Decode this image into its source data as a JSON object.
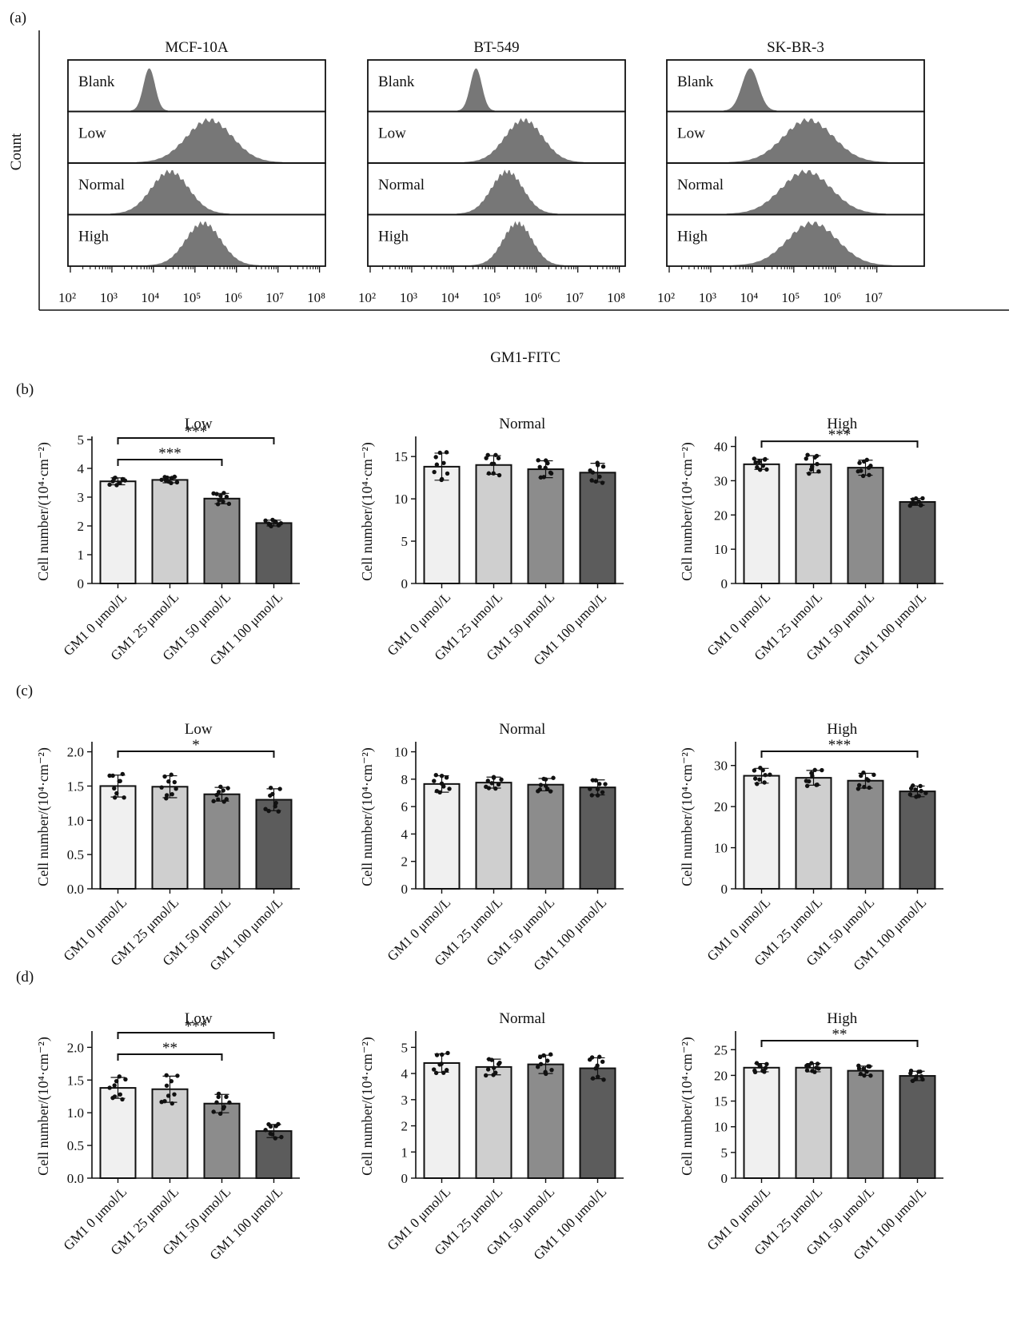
{
  "panel_labels": [
    "(a)",
    "(b)",
    "(c)",
    "(d)"
  ],
  "flow": {
    "y_label": "Count",
    "x_label": "GM1-FITC",
    "row_labels": [
      "Blank",
      "Low",
      "Normal",
      "High"
    ],
    "tick_labels": [
      "10²",
      "10³",
      "10⁴",
      "10⁵",
      "10⁶",
      "10⁷",
      "10⁸"
    ],
    "colors": {
      "fill": "#777777"
    },
    "plots": [
      {
        "title": "MCF-10A",
        "decades": 7,
        "peaks": [
          {
            "center": 3.9,
            "width": 0.14,
            "label": "Blank"
          },
          {
            "center": 5.35,
            "width": 0.55,
            "label": "Low"
          },
          {
            "center": 4.4,
            "width": 0.45,
            "label": "Normal"
          },
          {
            "center": 5.2,
            "width": 0.42,
            "label": "High"
          }
        ]
      },
      {
        "title": "BT-549",
        "decades": 6,
        "peaks": [
          {
            "center": 4.55,
            "width": 0.14,
            "label": "Blank"
          },
          {
            "center": 5.7,
            "width": 0.45,
            "label": "Low"
          },
          {
            "center": 5.3,
            "width": 0.38,
            "label": "Normal"
          },
          {
            "center": 5.55,
            "width": 0.35,
            "label": "High"
          }
        ]
      },
      {
        "title": "SK-BR-3",
        "decades": 5,
        "peaks": [
          {
            "center": 3.95,
            "width": 0.2,
            "label": "Blank"
          },
          {
            "center": 5.35,
            "width": 0.6,
            "label": "Low"
          },
          {
            "center": 5.3,
            "width": 0.6,
            "label": "Normal"
          },
          {
            "center": 5.45,
            "width": 0.6,
            "label": "High"
          }
        ]
      }
    ]
  },
  "bar_common": {
    "ylabel": "Cell number/(10⁴·cm⁻²)",
    "categories": [
      "GM1 0 μmol/L",
      "GM1 25 μmol/L",
      "GM1 50 μmol/L",
      "GM1 100 μmol/L"
    ],
    "bar_colors": [
      "#f0f0f0",
      "#cfcfcf",
      "#8c8c8c",
      "#5c5c5c"
    ]
  },
  "chart_data": [
    {
      "type": "bar",
      "panel": "(b)",
      "title": "Low",
      "values": [
        3.55,
        3.6,
        2.95,
        2.1
      ],
      "errors": [
        0.12,
        0.1,
        0.18,
        0.1
      ],
      "ylim": [
        0,
        5
      ],
      "yticks": [
        "0",
        "1",
        "2",
        "3",
        "4",
        "5"
      ],
      "sig": [
        {
          "from": 0,
          "to": 3,
          "label": "***"
        },
        {
          "from": 0,
          "to": 2,
          "label": "***"
        }
      ]
    },
    {
      "type": "bar",
      "panel": "(b)",
      "title": "Normal",
      "values": [
        13.8,
        14.0,
        13.5,
        13.1
      ],
      "errors": [
        1.6,
        1.1,
        1.0,
        1.1
      ],
      "ylim": [
        0,
        17
      ],
      "yticks": [
        "0",
        "5",
        "10",
        "15"
      ],
      "sig": []
    },
    {
      "type": "bar",
      "panel": "(b)",
      "title": "High",
      "values": [
        34.8,
        34.8,
        33.8,
        23.8
      ],
      "errors": [
        1.5,
        2.5,
        2.2,
        1.0
      ],
      "ylim": [
        0,
        42
      ],
      "yticks": [
        "0",
        "10",
        "20",
        "30",
        "40"
      ],
      "sig": [
        {
          "from": 0,
          "to": 3,
          "label": "***"
        }
      ]
    },
    {
      "type": "bar",
      "panel": "(c)",
      "title": "Low",
      "values": [
        1.5,
        1.49,
        1.38,
        1.3
      ],
      "errors": [
        0.16,
        0.16,
        0.1,
        0.16
      ],
      "ylim": [
        0,
        2.1
      ],
      "yticks": [
        "0.0",
        "0.5",
        "1.0",
        "1.5",
        "2.0"
      ],
      "sig": [
        {
          "from": 0,
          "to": 3,
          "label": "*"
        }
      ]
    },
    {
      "type": "bar",
      "panel": "(c)",
      "title": "Normal",
      "values": [
        7.65,
        7.75,
        7.6,
        7.4
      ],
      "errors": [
        0.6,
        0.4,
        0.45,
        0.55
      ],
      "ylim": [
        0,
        10.5
      ],
      "yticks": [
        "0",
        "2",
        "4",
        "6",
        "8",
        "10"
      ],
      "sig": []
    },
    {
      "type": "bar",
      "panel": "(c)",
      "title": "High",
      "values": [
        27.5,
        27.0,
        26.3,
        23.7
      ],
      "errors": [
        1.8,
        1.8,
        1.8,
        1.3
      ],
      "ylim": [
        0,
        35
      ],
      "yticks": [
        "0",
        "10",
        "20",
        "30"
      ],
      "sig": [
        {
          "from": 0,
          "to": 3,
          "label": "***"
        }
      ]
    },
    {
      "type": "bar",
      "panel": "(d)",
      "title": "Low",
      "values": [
        1.38,
        1.36,
        1.14,
        0.72
      ],
      "errors": [
        0.16,
        0.2,
        0.14,
        0.1
      ],
      "ylim": [
        0,
        2.2
      ],
      "yticks": [
        "0.0",
        "0.5",
        "1.0",
        "1.5",
        "2.0"
      ],
      "sig": [
        {
          "from": 0,
          "to": 3,
          "label": "***"
        },
        {
          "from": 0,
          "to": 2,
          "label": "**"
        }
      ]
    },
    {
      "type": "bar",
      "panel": "(d)",
      "title": "Normal",
      "values": [
        4.4,
        4.25,
        4.35,
        4.2
      ],
      "errors": [
        0.35,
        0.3,
        0.35,
        0.4
      ],
      "ylim": [
        0,
        5.5
      ],
      "yticks": [
        "0",
        "1",
        "2",
        "3",
        "4",
        "5"
      ],
      "sig": []
    },
    {
      "type": "bar",
      "panel": "(d)",
      "title": "High",
      "values": [
        21.5,
        21.5,
        20.9,
        19.9
      ],
      "errors": [
        0.8,
        0.8,
        0.9,
        0.9
      ],
      "ylim": [
        0,
        28
      ],
      "yticks": [
        "0",
        "5",
        "10",
        "15",
        "20",
        "25"
      ],
      "sig": [
        {
          "from": 0,
          "to": 3,
          "label": "**"
        }
      ]
    }
  ]
}
